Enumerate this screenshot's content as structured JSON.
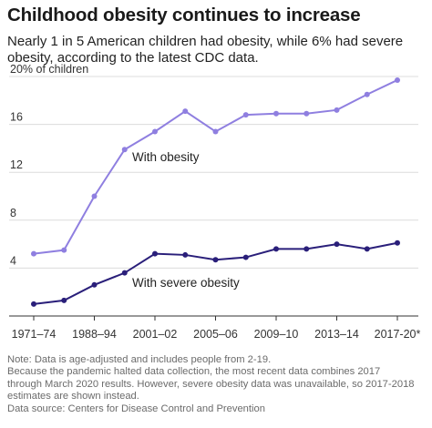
{
  "title": "Childhood obesity continues to increase",
  "subtitle": "Nearly 1 in 5 American children had obesity, while 6% had severe obesity, according to the latest CDC data.",
  "notes": [
    "Note: Data is age-adjusted and includes people from 2-19.",
    "Because the pandemic halted data collection, the most recent data combines 2017",
    "through March 2020 results. However, severe obesity data was unavailable, so 2017-2018",
    "estimates are shown instead."
  ],
  "source": "Data source: Centers for Disease Control and Prevention",
  "chart_data": {
    "type": "line",
    "x": [
      0,
      1,
      2,
      3,
      4,
      5,
      6,
      7,
      8,
      9,
      10,
      11,
      12
    ],
    "x_tick_labels": [
      "1971–74",
      "1988–94",
      "2001–02",
      "2005–06",
      "2009–10",
      "2013–14",
      "2017-20*"
    ],
    "x_tick_positions": [
      0,
      2,
      4,
      6,
      8,
      10,
      12
    ],
    "y_ticks": [
      "20% of children",
      "16",
      "12",
      "8",
      "4"
    ],
    "y_tick_values": [
      20,
      16,
      12,
      8,
      4
    ],
    "ylim": [
      0,
      20
    ],
    "grid": true,
    "series": [
      {
        "name": "With obesity",
        "color": "#8f7fe0",
        "values": [
          5.2,
          5.5,
          10.0,
          13.9,
          15.4,
          17.1,
          15.4,
          16.8,
          16.9,
          16.9,
          17.2,
          18.5,
          19.7
        ]
      },
      {
        "name": "With severe obesity",
        "color": "#2a1f7a",
        "values": [
          1.0,
          1.3,
          2.6,
          3.6,
          5.2,
          5.1,
          4.7,
          4.9,
          5.6,
          5.6,
          6.0,
          5.6,
          6.1
        ]
      }
    ]
  }
}
